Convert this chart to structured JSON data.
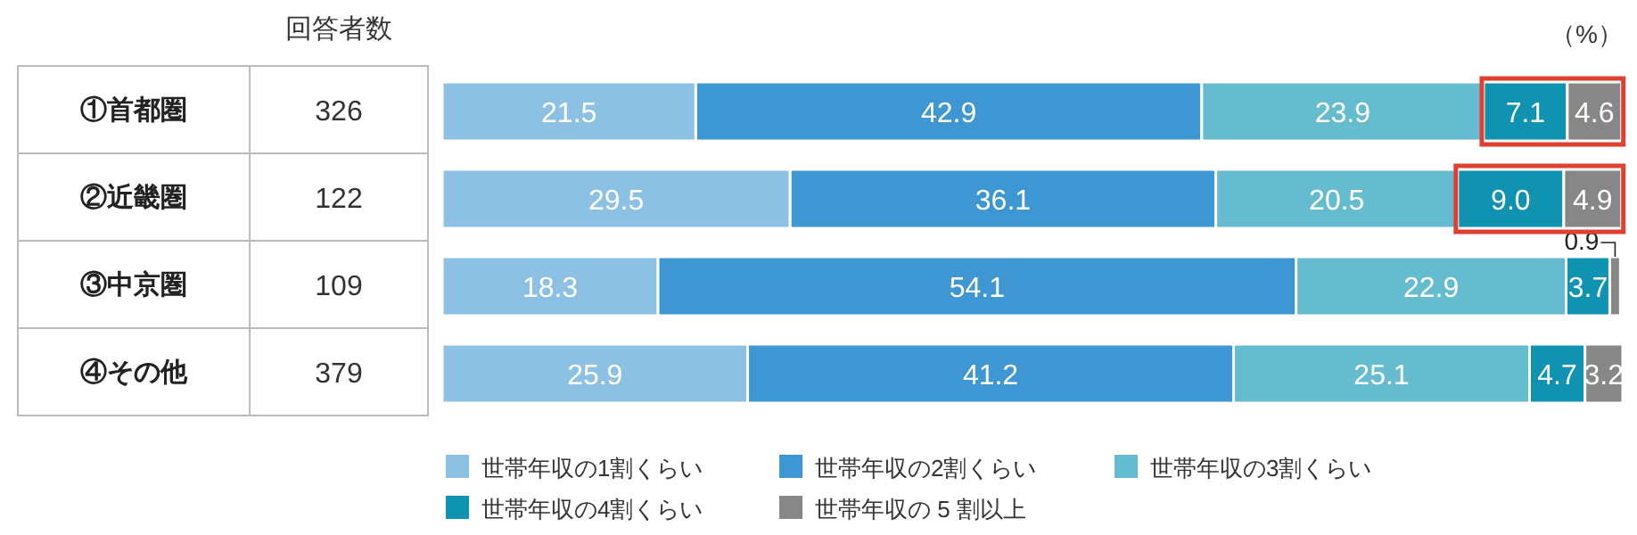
{
  "chart_data": {
    "type": "bar",
    "orientation": "horizontal",
    "stacked": true,
    "data_labels": true,
    "legend": "bottom",
    "categories": [
      "①首都圏",
      "②近畿圏",
      "③中京圏",
      "④その他"
    ],
    "series": [
      {
        "name": "世帯年収の1割くらい",
        "color": "#8cc1e4",
        "values": [
          21.5,
          29.5,
          18.3,
          25.9
        ]
      },
      {
        "name": "世帯年収の2割くらい",
        "color": "#3e96d3",
        "values": [
          42.9,
          36.1,
          54.1,
          41.2
        ]
      },
      {
        "name": "世帯年収の3割くらい",
        "color": "#66bccf",
        "values": [
          23.9,
          20.5,
          22.9,
          25.1
        ]
      },
      {
        "name": "世帯年収の4割くらい",
        "color": "#0f93b0",
        "values": [
          7.1,
          9.0,
          3.7,
          4.7
        ],
        "value_labels": [
          "7.1",
          "9.0",
          "3.7",
          "4.7"
        ]
      },
      {
        "name": "世帯年収の 5 割以上",
        "color": "#878787",
        "values": [
          4.6,
          4.9,
          0.9,
          3.2
        ]
      }
    ],
    "annotations": [
      "回答者数",
      "326",
      "122",
      "109",
      "379",
      "（%）"
    ]
  }
}
